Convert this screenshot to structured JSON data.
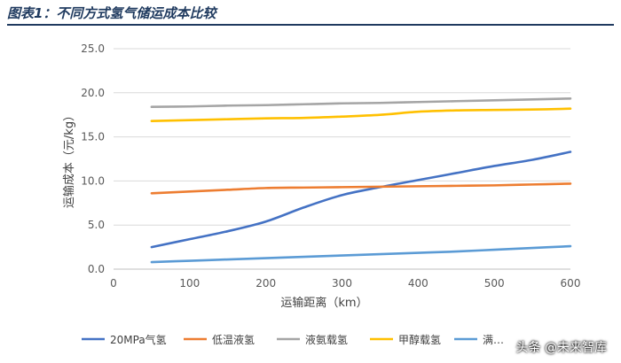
{
  "page_title": "图表1：不同方式氢气储运成本比较",
  "watermark": "头条 @未来智库",
  "chart_data": {
    "type": "line",
    "title": "图表1：不同方式氢气储运成本比较",
    "xlabel": "运输距离（km）",
    "ylabel": "运输成本（元/kg）",
    "xlim": [
      0,
      600
    ],
    "ylim": [
      0,
      25
    ],
    "xticks": [
      0,
      100,
      200,
      300,
      400,
      500,
      600
    ],
    "yticks": [
      "0.0",
      "5.0",
      "10.0",
      "15.0",
      "20.0",
      "25.0"
    ],
    "grid": "horizontal",
    "legend_position": "bottom",
    "x": [
      50,
      100,
      150,
      200,
      250,
      300,
      350,
      400,
      450,
      500,
      550,
      600
    ],
    "series": [
      {
        "name": "20MPa气氢",
        "color": "#4472c4",
        "values": [
          2.5,
          3.4,
          4.3,
          5.4,
          7.0,
          8.4,
          9.3,
          10.1,
          10.9,
          11.7,
          12.4,
          13.3
        ]
      },
      {
        "name": "低温液氢",
        "color": "#ed7d31",
        "values": [
          8.6,
          8.8,
          9.0,
          9.2,
          9.25,
          9.3,
          9.35,
          9.4,
          9.45,
          9.5,
          9.6,
          9.7
        ]
      },
      {
        "name": "液氨载氢",
        "color": "#a5a5a5",
        "values": [
          18.4,
          18.45,
          18.55,
          18.6,
          18.7,
          18.8,
          18.85,
          18.95,
          19.05,
          19.15,
          19.25,
          19.35
        ]
      },
      {
        "name": "甲醇载氢",
        "color": "#ffc000",
        "values": [
          16.8,
          16.9,
          17.0,
          17.1,
          17.15,
          17.3,
          17.5,
          17.85,
          18.0,
          18.05,
          18.1,
          18.2
        ]
      },
      {
        "name": "满…",
        "color": "#5b9bd5",
        "values": [
          0.8,
          0.95,
          1.1,
          1.25,
          1.4,
          1.55,
          1.7,
          1.85,
          2.0,
          2.2,
          2.4,
          2.6
        ]
      }
    ]
  }
}
